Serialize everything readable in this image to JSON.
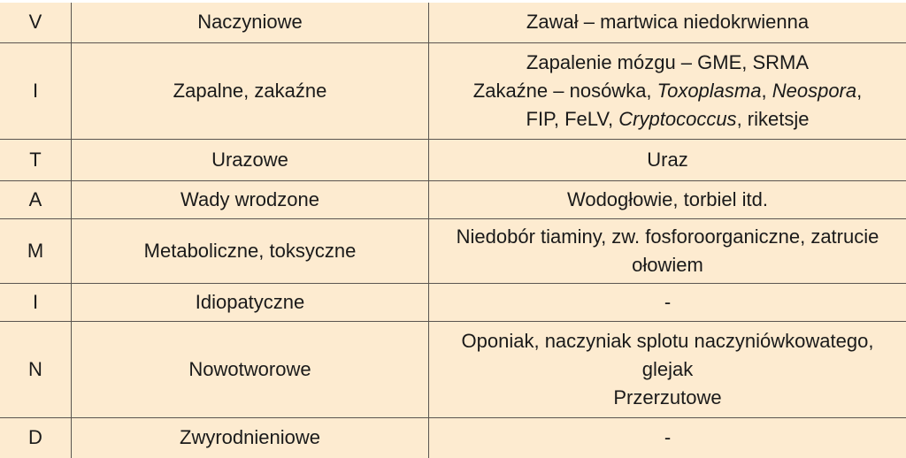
{
  "rows": [
    {
      "code": "V",
      "category": "Naczyniowe",
      "heights": 45,
      "desc": [
        [
          {
            "t": "Zawał – martwica niedokrwienna"
          }
        ]
      ]
    },
    {
      "code": "I",
      "category": "Zapalne, zakaźne",
      "heights": 109,
      "desc": [
        [
          {
            "t": "Zapalenie mózgu – GME, SRMA"
          }
        ],
        [
          {
            "t": "Zakaźne – nosówka, "
          },
          {
            "t": "Toxoplasma",
            "i": true
          },
          {
            "t": ", "
          },
          {
            "t": "Neospora",
            "i": true
          },
          {
            "t": ","
          }
        ],
        [
          {
            "t": "FIP, FeLV, "
          },
          {
            "t": "Cryptococcus",
            "i": true
          },
          {
            "t": ", riketsje"
          }
        ]
      ]
    },
    {
      "code": "T",
      "category": "Urazowe",
      "heights": 47,
      "desc": [
        [
          {
            "t": "Uraz"
          }
        ]
      ]
    },
    {
      "code": "A",
      "category": "Wady wrodzone",
      "heights": 43,
      "desc": [
        [
          {
            "t": "Wodogłowie, torbiel itd."
          }
        ]
      ]
    },
    {
      "code": "M",
      "category": "Metaboliczne, toksyczne",
      "heights": 73,
      "desc": [
        [
          {
            "t": "Niedobór tiaminy, zw. fosforoorganiczne, zatrucie"
          }
        ],
        [
          {
            "t": "ołowiem"
          }
        ]
      ]
    },
    {
      "code": "I",
      "category": "Idiopatyczne",
      "heights": 43,
      "desc": [
        [
          {
            "t": "-"
          }
        ]
      ]
    },
    {
      "code": "N",
      "category": "Nowotworowe",
      "heights": 109,
      "desc": [
        [
          {
            "t": "Oponiak, naczyniak splotu naczyniówkowatego,"
          }
        ],
        [
          {
            "t": "glejak"
          }
        ],
        [
          {
            "t": "Przerzutowe"
          }
        ]
      ]
    },
    {
      "code": "D",
      "category": "Zwyrodnieniowe",
      "heights": 46,
      "desc": [
        [
          {
            "t": "-"
          }
        ]
      ]
    }
  ],
  "colors": {
    "background": "#fdebd0",
    "border": "#5a5550"
  }
}
